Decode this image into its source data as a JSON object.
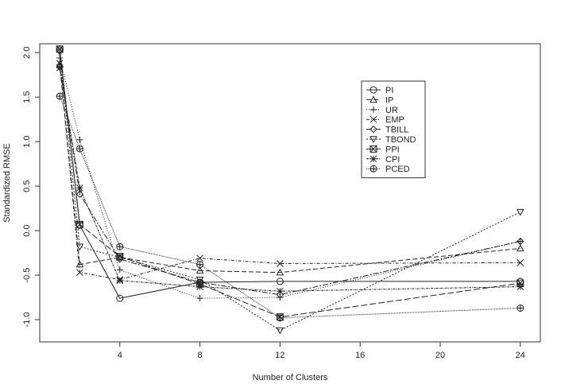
{
  "chart_data": {
    "type": "line",
    "title": "",
    "xlabel": "Number of Clusters",
    "ylabel": "Standardized RMSE",
    "x": [
      1,
      2,
      4,
      8,
      12,
      24
    ],
    "x_ticks": [
      4,
      8,
      12,
      16,
      20,
      24
    ],
    "y_ticks": [
      -1.0,
      -0.5,
      0.0,
      0.5,
      1.0,
      1.5,
      2.0
    ],
    "x_tick_labels": [
      "4",
      "8",
      "12",
      "16",
      "20",
      "24"
    ],
    "y_tick_labels": [
      "-1.0",
      "-0.5",
      "0.0",
      "0.5",
      "1.0",
      "1.5",
      "2.0"
    ],
    "xlim": [
      0.0,
      25.0
    ],
    "ylim": [
      -1.25,
      2.1
    ],
    "grid": false,
    "legend_position": "top-right",
    "series": [
      {
        "name": "PI",
        "values": [
          2.03,
          0.06,
          -0.76,
          -0.58,
          -0.57,
          -0.57
        ],
        "dash": "none",
        "marker": "circle"
      },
      {
        "name": "IP",
        "values": [
          1.87,
          -0.38,
          -0.3,
          -0.45,
          -0.47,
          -0.2
        ],
        "dash": "6,3",
        "marker": "triangle-up"
      },
      {
        "name": "UR",
        "values": [
          1.94,
          1.02,
          -0.44,
          -0.76,
          -0.75,
          -0.12
        ],
        "dash": "1,2",
        "marker": "plus"
      },
      {
        "name": "EMP",
        "values": [
          1.88,
          -0.47,
          -0.55,
          -0.31,
          -0.37,
          -0.36
        ],
        "dash": "4,2,1,2",
        "marker": "cross"
      },
      {
        "name": "TBILL",
        "values": [
          1.84,
          0.41,
          -0.32,
          -0.58,
          -0.72,
          -0.12
        ],
        "dash": "7,2,2,2",
        "marker": "diamond"
      },
      {
        "name": "TBOND",
        "values": [
          2.01,
          -0.18,
          -0.3,
          -0.55,
          -1.12,
          0.21
        ],
        "dash": "2,2",
        "marker": "triangle-down"
      },
      {
        "name": "PPI",
        "values": [
          2.04,
          0.07,
          -0.29,
          -0.6,
          -0.97,
          -0.59
        ],
        "dash": "8,3",
        "marker": "square-x"
      },
      {
        "name": "CPI",
        "values": [
          1.83,
          0.48,
          -0.56,
          -0.63,
          -0.68,
          -0.63
        ],
        "dash": "3,1,1,1",
        "marker": "asterisk"
      },
      {
        "name": "PCED",
        "values": [
          1.51,
          0.92,
          -0.18,
          -0.38,
          -0.98,
          -0.87
        ],
        "dash": "1,1",
        "marker": "circle-plus"
      }
    ]
  }
}
